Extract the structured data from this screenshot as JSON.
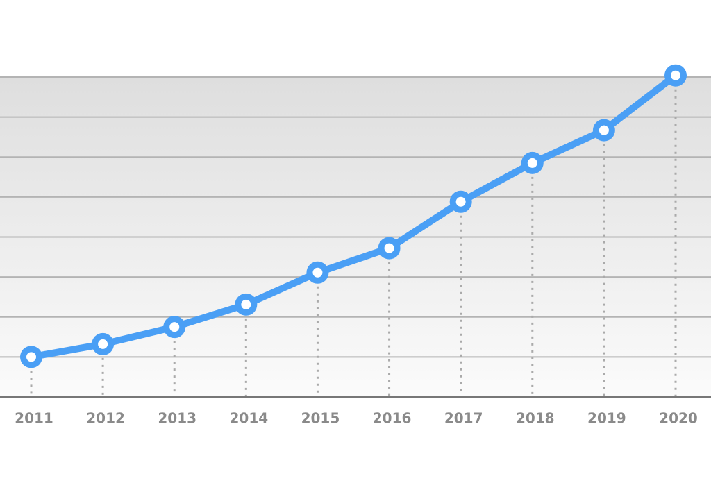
{
  "chart_data": {
    "type": "line",
    "categories": [
      "2011",
      "2012",
      "2013",
      "2014",
      "2015",
      "2016",
      "2017",
      "2018",
      "2019",
      "2020"
    ],
    "values": [
      1.0,
      1.32,
      1.75,
      2.31,
      3.11,
      3.72,
      4.88,
      5.85,
      6.67,
      8.04
    ],
    "color": "#4a9ff5",
    "ylim": [
      0,
      8
    ],
    "yticks": [
      1,
      2,
      3,
      4,
      5,
      6,
      7,
      8
    ],
    "grid": true
  }
}
